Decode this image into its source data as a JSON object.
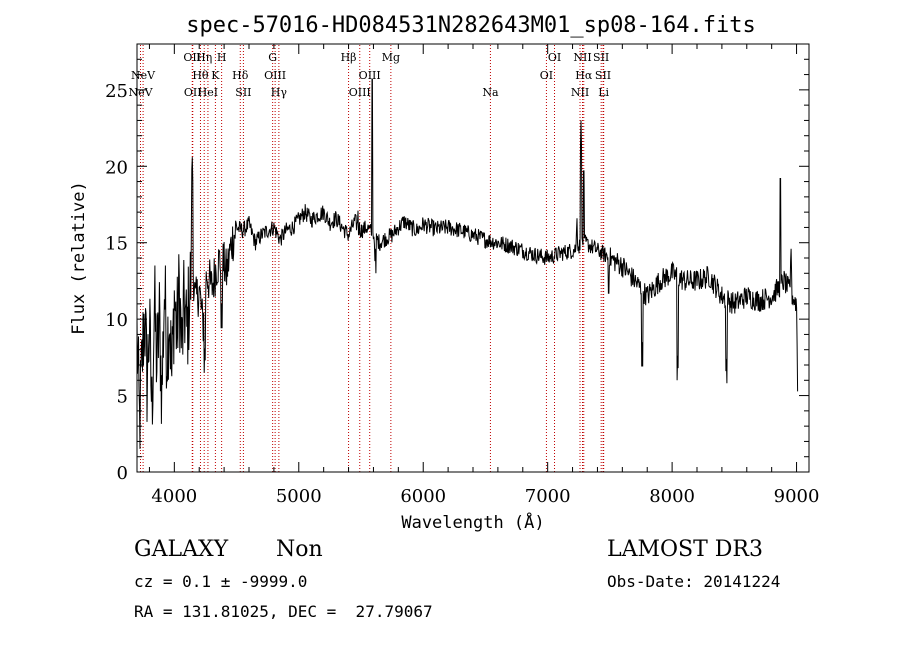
{
  "chart_data": {
    "type": "line",
    "title": "spec-57016-HD084531N282643M01_sp08-164.fits",
    "xlabel": "Wavelength (Å)",
    "ylabel": "Flux (relative)",
    "xlim": [
      3700,
      9100
    ],
    "ylim": [
      0,
      28
    ],
    "xticks": [
      4000,
      5000,
      6000,
      7000,
      8000,
      9000
    ],
    "yticks": [
      0,
      5,
      10,
      15,
      20,
      25
    ],
    "grid": false,
    "colors": {
      "line": "#000000",
      "markers": "#c00000"
    },
    "spectrum_anchors": [
      [
        3700,
        9.0
      ],
      [
        3720,
        3.0
      ],
      [
        3740,
        7.0
      ],
      [
        3760,
        10.5
      ],
      [
        3780,
        6.0
      ],
      [
        3800,
        9.5
      ],
      [
        3820,
        4.0
      ],
      [
        3840,
        11.0
      ],
      [
        3860,
        7.0
      ],
      [
        3880,
        10.0
      ],
      [
        3900,
        5.0
      ],
      [
        3920,
        12.0
      ],
      [
        3940,
        8.0
      ],
      [
        3960,
        10.5
      ],
      [
        3980,
        6.0
      ],
      [
        4000,
        11.5
      ],
      [
        4020,
        9.0
      ],
      [
        4040,
        12.0
      ],
      [
        4060,
        8.0
      ],
      [
        4080,
        11.0
      ],
      [
        4100,
        9.0
      ],
      [
        4130,
        12.5
      ],
      [
        4150,
        13.5
      ],
      [
        4170,
        11.0
      ],
      [
        4200,
        12.0
      ],
      [
        4230,
        9.5
      ],
      [
        4260,
        13.0
      ],
      [
        4300,
        12.0
      ],
      [
        4340,
        13.5
      ],
      [
        4380,
        14.0
      ],
      [
        4420,
        13.0
      ],
      [
        4460,
        15.0
      ],
      [
        4500,
        16.0
      ],
      [
        4550,
        15.8
      ],
      [
        4600,
        16.2
      ],
      [
        4650,
        15.0
      ],
      [
        4700,
        15.5
      ],
      [
        4750,
        15.8
      ],
      [
        4800,
        16.0
      ],
      [
        4850,
        15.2
      ],
      [
        4900,
        15.8
      ],
      [
        4950,
        16.0
      ],
      [
        5000,
        16.5
      ],
      [
        5050,
        17.0
      ],
      [
        5100,
        16.5
      ],
      [
        5150,
        16.8
      ],
      [
        5200,
        17.0
      ],
      [
        5250,
        16.3
      ],
      [
        5300,
        16.6
      ],
      [
        5350,
        16.0
      ],
      [
        5400,
        15.5
      ],
      [
        5450,
        16.4
      ],
      [
        5500,
        15.8
      ],
      [
        5550,
        16.0
      ],
      [
        5600,
        15.5
      ],
      [
        5650,
        15.0
      ],
      [
        5700,
        15.3
      ],
      [
        5750,
        15.5
      ],
      [
        5800,
        16.0
      ],
      [
        5850,
        16.4
      ],
      [
        5900,
        16.0
      ],
      [
        5950,
        15.8
      ],
      [
        6000,
        16.2
      ],
      [
        6100,
        15.9
      ],
      [
        6200,
        16.0
      ],
      [
        6300,
        15.8
      ],
      [
        6400,
        15.5
      ],
      [
        6500,
        15.2
      ],
      [
        6600,
        15.0
      ],
      [
        6700,
        14.8
      ],
      [
        6800,
        14.5
      ],
      [
        6900,
        14.2
      ],
      [
        7000,
        14.0
      ],
      [
        7100,
        14.3
      ],
      [
        7200,
        14.5
      ],
      [
        7300,
        15.0
      ],
      [
        7400,
        14.5
      ],
      [
        7500,
        14.0
      ],
      [
        7600,
        13.5
      ],
      [
        7700,
        12.5
      ],
      [
        7800,
        11.5
      ],
      [
        7900,
        12.5
      ],
      [
        8000,
        13.0
      ],
      [
        8100,
        12.5
      ],
      [
        8200,
        12.5
      ],
      [
        8300,
        12.8
      ],
      [
        8400,
        11.5
      ],
      [
        8500,
        11.0
      ],
      [
        8600,
        11.5
      ],
      [
        8700,
        11.2
      ],
      [
        8800,
        11.5
      ],
      [
        8900,
        12.5
      ],
      [
        9000,
        11.0
      ],
      [
        9010,
        4.0
      ]
    ],
    "spikes": [
      [
        4143,
        21.0
      ],
      [
        4245,
        8.5
      ],
      [
        4380,
        11.0
      ],
      [
        5475,
        17.5
      ],
      [
        5590,
        26.5
      ],
      [
        5615,
        15.0
      ],
      [
        7235,
        17.0
      ],
      [
        7268,
        23.0
      ],
      [
        7290,
        20.5
      ],
      [
        7490,
        12.5
      ],
      [
        7760,
        8.5
      ],
      [
        8045,
        8.0
      ],
      [
        8435,
        7.8
      ],
      [
        8870,
        20.0
      ],
      [
        8955,
        15.0
      ]
    ],
    "lines": [
      {
        "label": "NeV",
        "x": 3728,
        "row": 2
      },
      {
        "label": "NeV",
        "x": 3749,
        "row": 1
      },
      {
        "label": "OII",
        "x": 4144,
        "row": 0
      },
      {
        "label": "OII",
        "x": 4148,
        "row": 2
      },
      {
        "label": "Hθ",
        "x": 4210,
        "row": 1
      },
      {
        "label": "Hη",
        "x": 4240,
        "row": 0
      },
      {
        "label": "HeI",
        "x": 4270,
        "row": 2
      },
      {
        "label": "K",
        "x": 4330,
        "row": 1
      },
      {
        "label": "H",
        "x": 4380,
        "row": 0
      },
      {
        "label": "Hδ",
        "x": 4530,
        "row": 1
      },
      {
        "label": "SII",
        "x": 4555,
        "row": 2
      },
      {
        "label": "G",
        "x": 4790,
        "row": 0
      },
      {
        "label": "OIII",
        "x": 4810,
        "row": 1
      },
      {
        "label": "Hγ",
        "x": 4840,
        "row": 2
      },
      {
        "label": "Hβ",
        "x": 5400,
        "row": 0
      },
      {
        "label": "OIII",
        "x": 5490,
        "row": 2
      },
      {
        "label": "OIII",
        "x": 5570,
        "row": 1
      },
      {
        "label": "Mg",
        "x": 5740,
        "row": 0
      },
      {
        "label": "Na",
        "x": 6540,
        "row": 2
      },
      {
        "label": "OI",
        "x": 6990,
        "row": 1
      },
      {
        "label": "OI",
        "x": 7055,
        "row": 0
      },
      {
        "label": "NII",
        "x": 7260,
        "row": 2
      },
      {
        "label": "NII",
        "x": 7280,
        "row": 0
      },
      {
        "label": "Hα",
        "x": 7290,
        "row": 1
      },
      {
        "label": "SII",
        "x": 7430,
        "row": 0
      },
      {
        "label": "SII",
        "x": 7445,
        "row": 1
      },
      {
        "label": "Li",
        "x": 7450,
        "row": 2
      }
    ]
  },
  "footer": {
    "object_class": "GALAXY",
    "subclass": "Non",
    "survey": "LAMOST DR3",
    "cz": "cz = 0.1 ± -9999.0",
    "obs_date": "Obs-Date: 20141224",
    "coords": "RA = 131.81025, DEC =  27.79067"
  }
}
